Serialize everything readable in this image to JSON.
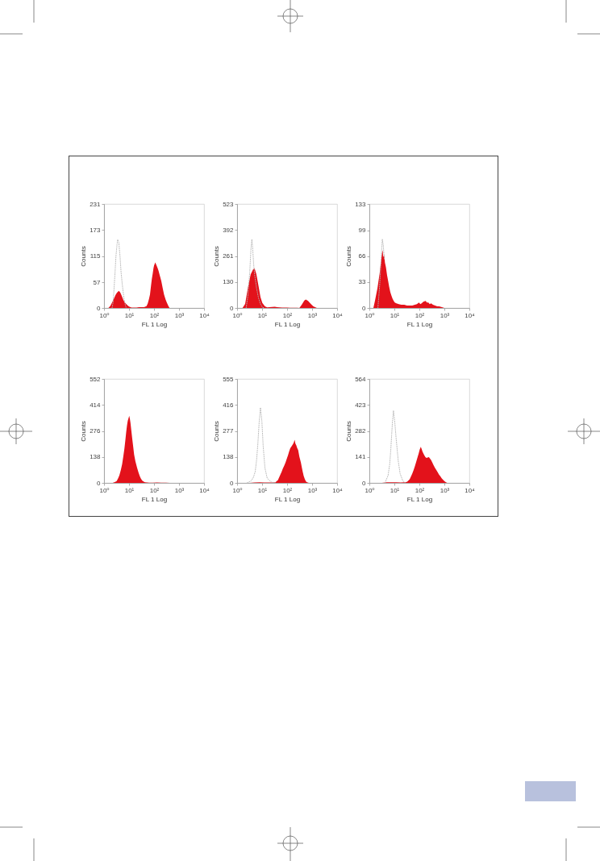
{
  "chart_data": [
    {
      "type": "area",
      "xlabel": "FL 1 Log",
      "ylabel": "Counts",
      "log": "x",
      "xlim": [
        1,
        10000
      ],
      "xticks": [
        {
          "value": 1,
          "label": "10⁰"
        },
        {
          "value": 10,
          "label": "10¹"
        },
        {
          "value": 100,
          "label": "10²"
        },
        {
          "value": 1000,
          "label": "10³"
        },
        {
          "value": 10000,
          "label": "10⁴"
        }
      ],
      "ylim": [
        0,
        231
      ],
      "yticks": [
        0,
        57,
        115,
        173,
        231
      ],
      "series": [
        {
          "color": "#e3121b",
          "x": [
            1.5,
            1.8,
            2.1,
            2.5,
            2.9,
            3.3,
            3.9,
            4.4,
            5,
            6,
            7,
            8.7,
            10,
            12.6,
            16,
            20,
            25,
            32,
            40,
            50,
            56,
            63,
            69,
            76,
            82,
            89,
            95,
            100,
            112,
            125,
            140,
            151,
            170,
            195,
            220,
            251,
            290,
            324,
            370,
            417
          ],
          "values": [
            0,
            5,
            12,
            21,
            29,
            34,
            38,
            35,
            28,
            17,
            11,
            6,
            3,
            1,
            1,
            1,
            2,
            2,
            2,
            4,
            10,
            20,
            30,
            50,
            65,
            77,
            88,
            94,
            101,
            95,
            88,
            83,
            72,
            60,
            45,
            30,
            19,
            12,
            5,
            0
          ]
        },
        {
          "type": "line",
          "line_style": "dotted",
          "color": "#b3b3b3",
          "x": [
            2.1,
            2.3,
            2.5,
            2.8,
            3,
            3.3,
            3.5,
            3.9,
            4.4,
            4.8,
            5.3,
            6.3,
            7,
            7.7
          ],
          "values": [
            0,
            12,
            40,
            85,
            115,
            140,
            152,
            146,
            112,
            80,
            55,
            20,
            8,
            0
          ]
        }
      ]
    },
    {
      "type": "area",
      "xlabel": "FL 1 Log",
      "ylabel": "Counts",
      "log": "x",
      "xlim": [
        1,
        10000
      ],
      "xticks": [
        {
          "value": 1,
          "label": "10⁰"
        },
        {
          "value": 10,
          "label": "10¹"
        },
        {
          "value": 100,
          "label": "10²"
        },
        {
          "value": 1000,
          "label": "10³"
        },
        {
          "value": 10000,
          "label": "10⁴"
        }
      ],
      "ylim": [
        0,
        523
      ],
      "yticks": [
        0,
        130,
        261,
        392,
        523
      ],
      "series": [
        {
          "color": "#e3121b",
          "x": [
            1.65,
            2.1,
            2.7,
            3.5,
            4.4,
            5,
            5.9,
            7.2,
            8.6,
            10.2,
            13,
            16,
            20,
            25,
            32,
            40,
            50,
            63,
            80,
            100,
            130,
            160,
            200,
            250,
            310,
            380,
            490,
            560,
            690,
            890,
            1120,
            1550
          ],
          "values": [
            0,
            20,
            101,
            169,
            195,
            200,
            170,
            110,
            55,
            25,
            8,
            3,
            4,
            5,
            6,
            4,
            3,
            2,
            2,
            2,
            1,
            1,
            1,
            1,
            0,
            15,
            38,
            43,
            35,
            20,
            8,
            0
          ]
        },
        {
          "type": "line",
          "line_style": "dotted",
          "color": "#b3b3b3",
          "x": [
            2.3,
            2.7,
            3.2,
            3.6,
            3.9,
            4.2,
            4.6,
            5,
            6,
            7.2,
            8.6,
            10,
            12
          ],
          "values": [
            0,
            60,
            180,
            300,
            345,
            300,
            220,
            170,
            100,
            50,
            20,
            5,
            0
          ]
        }
      ]
    },
    {
      "type": "area",
      "xlabel": "FL 1 Log",
      "ylabel": "Counts",
      "log": "x",
      "xlim": [
        1,
        10000
      ],
      "xticks": [
        {
          "value": 1,
          "label": "10⁰"
        },
        {
          "value": 10,
          "label": "10¹"
        },
        {
          "value": 100,
          "label": "10²"
        },
        {
          "value": 1000,
          "label": "10³"
        },
        {
          "value": 10000,
          "label": "10⁴"
        }
      ],
      "ylim": [
        0,
        133
      ],
      "yticks": [
        0,
        33,
        66,
        99,
        133
      ],
      "series": [
        {
          "color": "#e3121b",
          "x": [
            1.45,
            1.7,
            2.1,
            2.6,
            3,
            3.2,
            3.4,
            3.6,
            3.9,
            4.2,
            4.6,
            5.1,
            5.6,
            6.2,
            6.9,
            7.6,
            8.4,
            9.4,
            10.4,
            12,
            15,
            19,
            25,
            32,
            41,
            52,
            66,
            80,
            96,
            110,
            123,
            145,
            178,
            200,
            229,
            260,
            295,
            350,
            427,
            520,
            617,
            800,
            1000
          ],
          "values": [
            0,
            10,
            25,
            45,
            62,
            70,
            74,
            65,
            68,
            58,
            52,
            42,
            35,
            27,
            20,
            16,
            12,
            9,
            7,
            6,
            5,
            4,
            4,
            3,
            3,
            3,
            4,
            5,
            7,
            5,
            6,
            8,
            9,
            7,
            7,
            5,
            6,
            4,
            3,
            2,
            2,
            1,
            0
          ]
        },
        {
          "type": "line",
          "line_style": "dotted",
          "color": "#b3b3b3",
          "x": [
            2.2,
            2.6,
            3,
            3.3,
            3.6,
            4
          ],
          "values": [
            0,
            30,
            65,
            88,
            80,
            62
          ]
        }
      ]
    },
    {
      "type": "area",
      "xlabel": "FL 1 Log",
      "ylabel": "Counts",
      "log": "x",
      "xlim": [
        1,
        10000
      ],
      "xticks": [
        {
          "value": 1,
          "label": "10⁰"
        },
        {
          "value": 10,
          "label": "10¹"
        },
        {
          "value": 100,
          "label": "10²"
        },
        {
          "value": 1000,
          "label": "10³"
        },
        {
          "value": 10000,
          "label": "10⁴"
        }
      ],
      "ylim": [
        0,
        552
      ],
      "yticks": [
        0,
        138,
        276,
        414,
        552
      ],
      "series": [
        {
          "color": "#e3121b",
          "x": [
            2.2,
            2.7,
            3.2,
            3.6,
            4.1,
            4.7,
            5.3,
            5.9,
            6.5,
            7.1,
            7.7,
            8.3,
            8.9,
            9.6,
            10.2,
            10.8,
            11.4,
            12.3,
            13.3,
            14.6,
            16,
            18,
            21,
            24,
            27,
            30,
            34,
            39,
            44,
            54,
            64,
            90,
            130,
            195,
            300,
            417
          ],
          "values": [
            0,
            4,
            10,
            22,
            40,
            68,
            100,
            140,
            180,
            225,
            270,
            305,
            330,
            345,
            356,
            340,
            320,
            280,
            240,
            195,
            150,
            115,
            80,
            55,
            35,
            22,
            12,
            6,
            3,
            2,
            1,
            1,
            2,
            1,
            1,
            0
          ]
        }
      ]
    },
    {
      "type": "area",
      "xlabel": "FL 1 Log",
      "ylabel": "Counts",
      "log": "x",
      "xlim": [
        1,
        10000
      ],
      "xticks": [
        {
          "value": 1,
          "label": "10⁰"
        },
        {
          "value": 10,
          "label": "10¹"
        },
        {
          "value": 100,
          "label": "10²"
        },
        {
          "value": 1000,
          "label": "10³"
        },
        {
          "value": 10000,
          "label": "10⁴"
        }
      ],
      "ylim": [
        0,
        555
      ],
      "yticks": [
        0,
        138,
        277,
        416,
        555
      ],
      "series": [
        {
          "color": "#e3121b",
          "x": [
            3.2,
            5,
            8,
            12,
            18,
            25,
            34,
            43,
            52,
            60,
            67,
            77,
            87,
            98,
            110,
            122,
            134,
            150,
            169,
            185,
            200,
            215,
            234,
            255,
            277,
            310,
            355,
            385,
            420,
            460,
            510,
            570,
            630,
            740
          ],
          "values": [
            0,
            2,
            3,
            2,
            2,
            2,
            3,
            15,
            40,
            58,
            75,
            92,
            110,
            130,
            150,
            170,
            185,
            195,
            205,
            215,
            230,
            210,
            200,
            185,
            175,
            140,
            110,
            85,
            60,
            38,
            20,
            8,
            3,
            0
          ]
        },
        {
          "type": "line",
          "line_style": "dotted",
          "color": "#b3b3b3",
          "x": [
            2.5,
            3.6,
            4.5,
            5.3,
            6,
            6.7,
            7.6,
            8.6,
            9.8,
            11,
            13,
            16,
            23,
            34
          ],
          "values": [
            0,
            10,
            30,
            60,
            120,
            200,
            320,
            402,
            330,
            200,
            80,
            25,
            5,
            0
          ]
        }
      ]
    },
    {
      "type": "area",
      "xlabel": "FL 1 Log",
      "ylabel": "Counts",
      "log": "x",
      "xlim": [
        1,
        10000
      ],
      "xticks": [
        {
          "value": 1,
          "label": "10⁰"
        },
        {
          "value": 10,
          "label": "10¹"
        },
        {
          "value": 100,
          "label": "10²"
        },
        {
          "value": 1000,
          "label": "10³"
        },
        {
          "value": 10000,
          "label": "10⁴"
        }
      ],
      "ylim": [
        0,
        564
      ],
      "yticks": [
        0,
        141,
        282,
        423,
        564
      ],
      "series": [
        {
          "color": "#e3121b",
          "x": [
            3.2,
            5,
            8,
            12,
            18,
            25,
            32,
            41,
            52,
            59,
            66,
            75,
            85,
            94,
            103,
            114,
            123,
            133,
            145,
            158,
            175,
            192,
            215,
            241,
            265,
            293,
            330,
            373,
            420,
            477,
            540,
            613,
            700,
            780,
            880,
            1000,
            1130,
            1290
          ],
          "values": [
            0,
            3,
            3,
            3,
            2,
            3,
            5,
            20,
            50,
            70,
            90,
            115,
            140,
            160,
            180,
            196,
            185,
            170,
            160,
            150,
            140,
            135,
            138,
            140,
            132,
            125,
            110,
            95,
            82,
            70,
            58,
            45,
            35,
            25,
            17,
            10,
            4,
            0
          ]
        },
        {
          "type": "line",
          "line_style": "dotted",
          "color": "#b3b3b3",
          "x": [
            4.2,
            5.6,
            6.5,
            7.2,
            7.8,
            8.4,
            9.2,
            10.4,
            11.8,
            14.3,
            17,
            22,
            28
          ],
          "values": [
            0,
            40,
            100,
            180,
            260,
            330,
            392,
            330,
            240,
            120,
            50,
            10,
            0
          ]
        }
      ]
    }
  ]
}
